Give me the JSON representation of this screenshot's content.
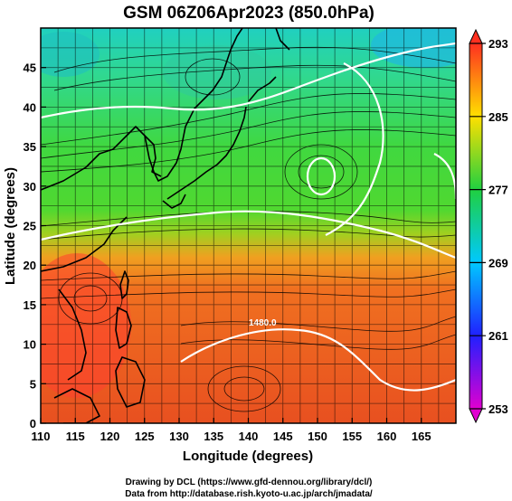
{
  "title": "GSM 06Z06Apr2023 (850.0hPa)",
  "x_axis": {
    "label": "Longitude (degrees)",
    "ticks": [
      "110",
      "115",
      "120",
      "125",
      "130",
      "135",
      "140",
      "145",
      "150",
      "155",
      "160",
      "165"
    ]
  },
  "y_axis": {
    "label": "Latitude  (degrees)",
    "ticks": [
      "0",
      "5",
      "10",
      "15",
      "20",
      "25",
      "30",
      "35",
      "40",
      "45"
    ]
  },
  "colorbar": {
    "ticks": [
      "253",
      "261",
      "269",
      "277",
      "285",
      "293"
    ],
    "colors": [
      "#e000d0",
      "#2020ff",
      "#00c8ff",
      "#20e060",
      "#ffe000",
      "#ff3020"
    ]
  },
  "contour_label": "1480.0",
  "credits": {
    "line1": "Drawing by DCL (https://www.gfd-dennou.org/library/dcl/)",
    "line2": "Data from http://database.rish.kyoto-u.ac.jp/arch/jmadata/"
  },
  "chart_data": {
    "type": "heatmap",
    "xlim": [
      110,
      170
    ],
    "ylim": [
      0,
      50
    ],
    "colorbar_range": [
      253,
      293
    ],
    "grid": true
  }
}
